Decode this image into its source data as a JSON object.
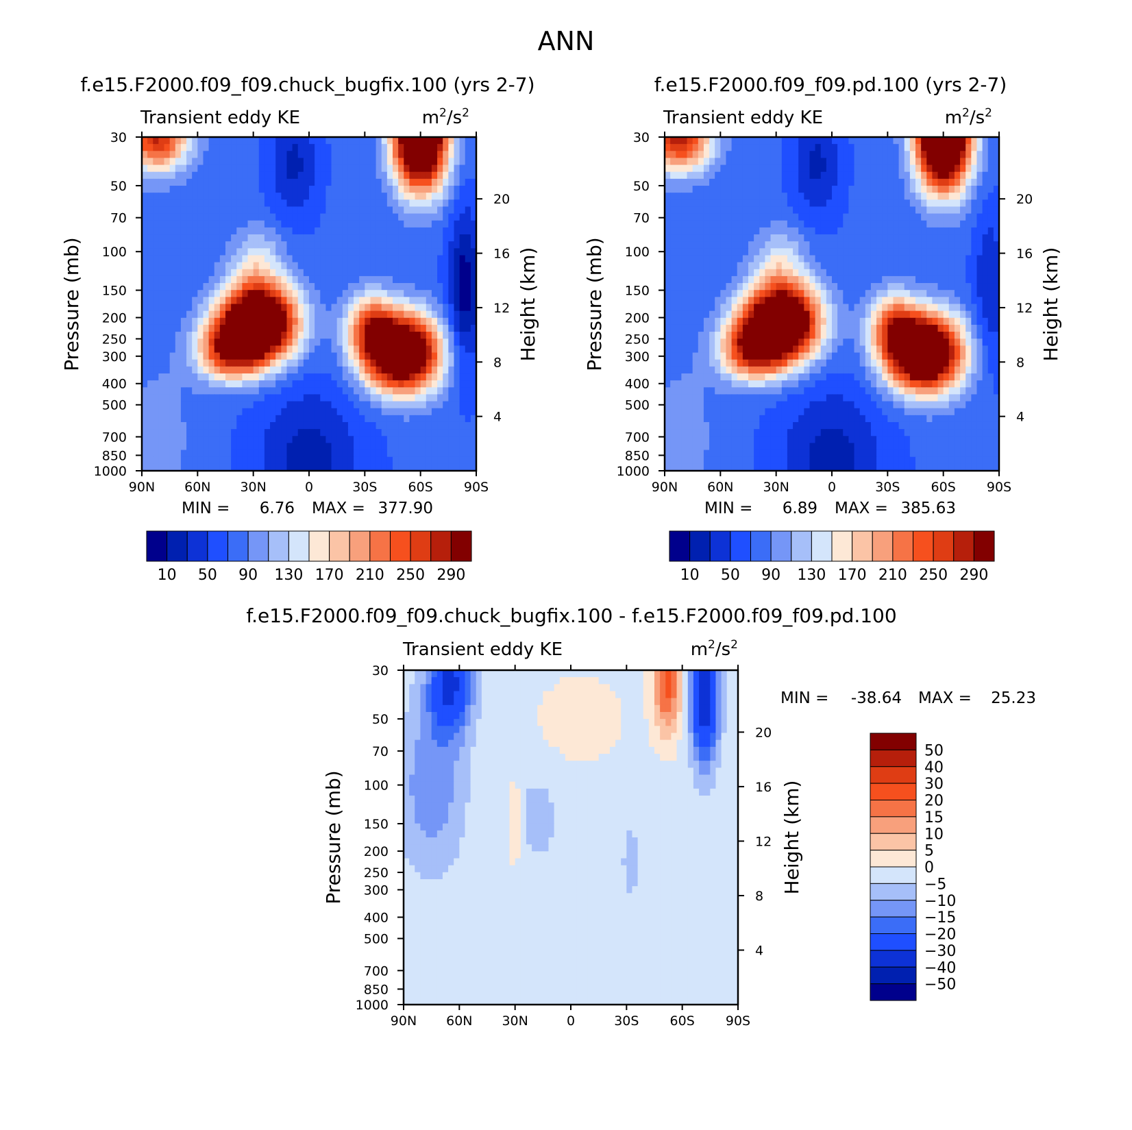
{
  "figure": {
    "title": "ANN"
  },
  "palettes": {
    "kesteps": [
      "#00008c",
      "#0020b0",
      "#0d32d6",
      "#1f4fff",
      "#3b6df7",
      "#7596f7",
      "#a6bff9",
      "#d4e5fb",
      "#fde8d6",
      "#fbc4a6",
      "#f8a07c",
      "#f67346",
      "#f6501e",
      "#df3d14",
      "#b61f0b",
      "#820000"
    ],
    "diffsteps": [
      "#820000",
      "#b61f0b",
      "#df3d14",
      "#f6501e",
      "#f67346",
      "#f8a07c",
      "#fbc4a6",
      "#fde8d6",
      "#d4e5fb",
      "#a6bff9",
      "#7596f7",
      "#3b6df7",
      "#1f4fff",
      "#0d32d6",
      "#0020b0",
      "#00008c"
    ]
  },
  "chart_data": [
    {
      "type": "heatmap",
      "id": "ctl",
      "title": "f.e15.F2000.f09_f09.chuck_bugfix.100 (yrs 2-7)",
      "left_subtitle": "Transient eddy KE",
      "right_subtitle": {
        "base": "m",
        "sup1": "2",
        "mid": "/s",
        "sup2": "2"
      },
      "ylabel": "Pressure (mb)",
      "y2label": "Height (km)",
      "x_ticks": [
        "90N",
        "60N",
        "30N",
        "0",
        "30S",
        "60S",
        "90S"
      ],
      "x_values": [
        90,
        60,
        30,
        0,
        -30,
        -60,
        -90
      ],
      "y_ticks": [
        30,
        50,
        70,
        100,
        150,
        200,
        250,
        300,
        400,
        500,
        700,
        850,
        1000
      ],
      "y2_ticks": [
        20,
        16,
        12,
        8,
        4
      ],
      "ylim": [
        30,
        1000
      ],
      "y_scale": "log",
      "min_label": "MIN =",
      "min_value": "6.76",
      "max_label": "MAX =",
      "max_value": "377.90",
      "min": 6.76,
      "max": 377.9,
      "colorbar_levels": [
        10,
        30,
        50,
        70,
        90,
        110,
        130,
        150,
        170,
        190,
        210,
        230,
        250,
        270,
        290
      ],
      "colorbar_labels": [
        "10",
        "50",
        "90",
        "130",
        "170",
        "210",
        "250",
        "290"
      ],
      "palette": "kesteps",
      "features": [
        {
          "lat": 27,
          "p": 210,
          "amp": 360,
          "sx": 14,
          "sy": 0.28
        },
        {
          "lat": 43,
          "p": 280,
          "amp": 180,
          "sx": 12,
          "sy": 0.22
        },
        {
          "lat": 28,
          "p": 110,
          "amp": 60,
          "sx": 10,
          "sy": 0.25
        },
        {
          "lat": -50,
          "p": 290,
          "amp": 345,
          "sx": 14,
          "sy": 0.28
        },
        {
          "lat": -33,
          "p": 220,
          "amp": 130,
          "sx": 9,
          "sy": 0.25
        },
        {
          "lat": -60,
          "p": 30,
          "amp": 380,
          "sx": 10,
          "sy": 0.38
        },
        {
          "lat": 82,
          "p": 30,
          "amp": 200,
          "sx": 12,
          "sy": 0.25
        },
        {
          "lat": 82,
          "p": 700,
          "amp": 25,
          "sx": 15,
          "sy": 0.6
        },
        {
          "lat": -82,
          "p": 150,
          "amp": -35,
          "sx": 6,
          "sy": 0.6
        }
      ],
      "base": 75,
      "valleys": [
        {
          "lat": 0,
          "p": 900,
          "amp": -55,
          "sx": 20,
          "sy": 0.55
        },
        {
          "lat": 8,
          "p": 40,
          "amp": -50,
          "sx": 9,
          "sy": 0.4
        },
        {
          "lat": -85,
          "p": 150,
          "amp": -45,
          "sx": 6,
          "sy": 0.6
        }
      ]
    },
    {
      "type": "heatmap",
      "id": "test",
      "title": "f.e15.F2000.f09_f09.pd.100 (yrs 2-7)",
      "left_subtitle": "Transient eddy KE",
      "right_subtitle": {
        "base": "m",
        "sup1": "2",
        "mid": "/s",
        "sup2": "2"
      },
      "ylabel": "Pressure (mb)",
      "y2label": "Height (km)",
      "x_ticks": [
        "90N",
        "60N",
        "30N",
        "0",
        "30S",
        "60S",
        "90S"
      ],
      "x_values": [
        90,
        60,
        30,
        0,
        -30,
        -60,
        -90
      ],
      "y_ticks": [
        30,
        50,
        70,
        100,
        150,
        200,
        250,
        300,
        400,
        500,
        700,
        850,
        1000
      ],
      "y2_ticks": [
        20,
        16,
        12,
        8,
        4
      ],
      "ylim": [
        30,
        1000
      ],
      "y_scale": "log",
      "min_label": "MIN =",
      "min_value": "6.89",
      "max_label": "MAX =",
      "max_value": "385.63",
      "min": 6.89,
      "max": 385.63,
      "colorbar_levels": [
        10,
        30,
        50,
        70,
        90,
        110,
        130,
        150,
        170,
        190,
        210,
        230,
        250,
        270,
        290
      ],
      "colorbar_labels": [
        "10",
        "50",
        "90",
        "130",
        "170",
        "210",
        "250",
        "290"
      ],
      "palette": "kesteps",
      "features": [
        {
          "lat": 27,
          "p": 210,
          "amp": 355,
          "sx": 14,
          "sy": 0.28
        },
        {
          "lat": 43,
          "p": 280,
          "amp": 180,
          "sx": 12,
          "sy": 0.22
        },
        {
          "lat": 28,
          "p": 110,
          "amp": 60,
          "sx": 10,
          "sy": 0.25
        },
        {
          "lat": -50,
          "p": 290,
          "amp": 350,
          "sx": 14,
          "sy": 0.28
        },
        {
          "lat": -33,
          "p": 220,
          "amp": 130,
          "sx": 9,
          "sy": 0.25
        },
        {
          "lat": -60,
          "p": 30,
          "amp": 395,
          "sx": 10,
          "sy": 0.38
        },
        {
          "lat": 82,
          "p": 30,
          "amp": 210,
          "sx": 12,
          "sy": 0.25
        },
        {
          "lat": 82,
          "p": 700,
          "amp": 25,
          "sx": 15,
          "sy": 0.6
        }
      ],
      "base": 75,
      "valleys": [
        {
          "lat": 0,
          "p": 900,
          "amp": -55,
          "sx": 20,
          "sy": 0.55
        },
        {
          "lat": 8,
          "p": 40,
          "amp": -50,
          "sx": 9,
          "sy": 0.4
        },
        {
          "lat": -85,
          "p": 150,
          "amp": -45,
          "sx": 6,
          "sy": 0.6
        }
      ]
    },
    {
      "type": "heatmap",
      "id": "diff",
      "title": "f.e15.F2000.f09_f09.chuck_bugfix.100 - f.e15.F2000.f09_f09.pd.100",
      "left_subtitle": "Transient eddy KE",
      "right_subtitle": {
        "base": "m",
        "sup1": "2",
        "mid": "/s",
        "sup2": "2"
      },
      "ylabel": "Pressure (mb)",
      "y2label": "Height (km)",
      "x_ticks": [
        "90N",
        "60N",
        "30N",
        "0",
        "30S",
        "60S",
        "90S"
      ],
      "x_values": [
        90,
        60,
        30,
        0,
        -30,
        -60,
        -90
      ],
      "y_ticks": [
        30,
        50,
        70,
        100,
        150,
        200,
        250,
        300,
        400,
        500,
        700,
        850,
        1000
      ],
      "y2_ticks": [
        20,
        16,
        12,
        8,
        4
      ],
      "ylim": [
        30,
        1000
      ],
      "y_scale": "log",
      "min_label": "MIN =",
      "min_value": "-38.64",
      "max_label": "MAX =",
      "max_value": "25.23",
      "min": -38.64,
      "max": 25.23,
      "colorbar_levels": [
        50,
        40,
        30,
        20,
        15,
        10,
        5,
        0,
        -5,
        -10,
        -15,
        -20,
        -30,
        -40,
        -50
      ],
      "colorbar_labels": [
        "50",
        "40",
        "30",
        "20",
        "15",
        "10",
        "5",
        "0",
        "-5",
        "-10",
        "-15",
        "-20",
        "-30",
        "-40",
        "-50"
      ],
      "palette": "diffsteps",
      "features": [
        {
          "lat": 65,
          "p": 35,
          "amp": -30,
          "sx": 8,
          "sy": 0.35
        },
        {
          "lat": 75,
          "p": 100,
          "amp": -12,
          "sx": 12,
          "sy": 0.6
        },
        {
          "lat": -72,
          "p": 40,
          "amp": -38,
          "sx": 5,
          "sy": 0.45
        },
        {
          "lat": -52,
          "p": 35,
          "amp": 24,
          "sx": 5,
          "sy": 0.35
        },
        {
          "lat": 30,
          "p": 150,
          "amp": 7,
          "sx": 3,
          "sy": 0.3
        },
        {
          "lat": -5,
          "p": 50,
          "amp": 3,
          "sx": 25,
          "sy": 0.5
        },
        {
          "lat": 18,
          "p": 140,
          "amp": -7,
          "sx": 7,
          "sy": 0.3
        },
        {
          "lat": -32,
          "p": 220,
          "amp": -6,
          "sx": 3,
          "sy": 0.3
        }
      ],
      "base": -2,
      "valleys": []
    }
  ]
}
